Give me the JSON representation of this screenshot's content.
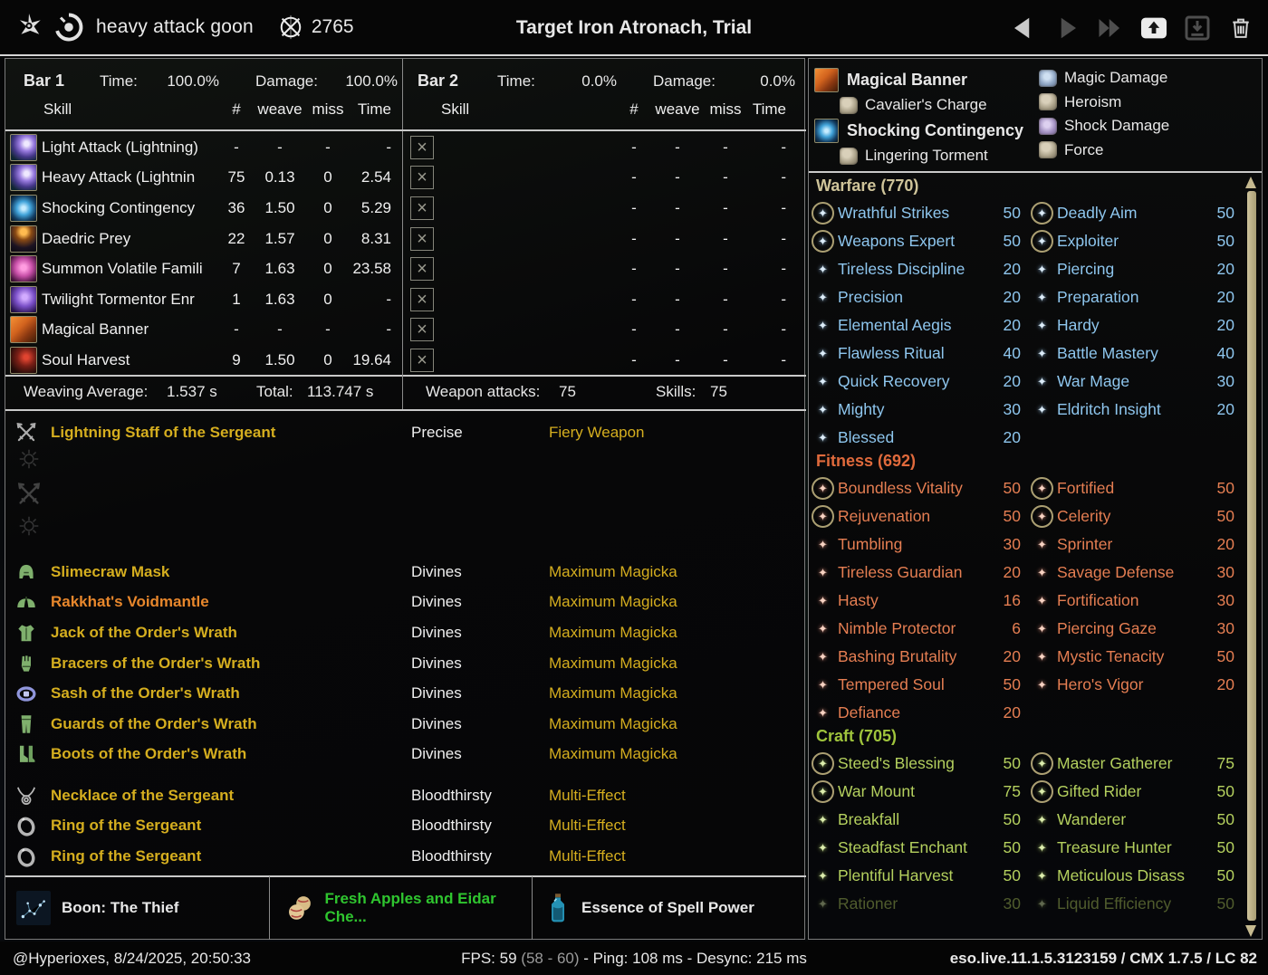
{
  "top_bar": {
    "fight_name": "heavy attack goon",
    "champion_points": "2765",
    "title": "Target Iron Atronach, Trial"
  },
  "bar1": {
    "label": "Bar 1",
    "time_label": "Time:",
    "time_value": "100.0%",
    "damage_label": "Damage:",
    "damage_value": "100.0%",
    "columns": {
      "skill": "Skill",
      "count": "#",
      "weave": "weave",
      "miss": "miss",
      "time": "Time"
    },
    "rows": [
      {
        "skill": "Light Attack (Lightning)",
        "icon": "lightning-attack-icon",
        "art": "ic-light",
        "count": "-",
        "weave": "-",
        "miss": "-",
        "time": "-"
      },
      {
        "skill": "Heavy Attack (Lightnin",
        "icon": "lightning-attack-icon",
        "art": "ic-light",
        "count": "75",
        "weave": "0.13",
        "miss": "0",
        "time": "2.54"
      },
      {
        "skill": "Shocking Contingency",
        "icon": "shocking-contingency-icon",
        "art": "ic-shock",
        "count": "36",
        "weave": "1.50",
        "miss": "0",
        "time": "5.29"
      },
      {
        "skill": "Daedric Prey",
        "icon": "daedric-prey-icon",
        "art": "ic-prey",
        "count": "22",
        "weave": "1.57",
        "miss": "0",
        "time": "8.31"
      },
      {
        "skill": "Summon Volatile Famili",
        "icon": "volatile-familiar-icon",
        "art": "ic-fam",
        "count": "7",
        "weave": "1.63",
        "miss": "0",
        "time": "23.58"
      },
      {
        "skill": "Twilight Tormentor Enr",
        "icon": "twilight-tormentor-icon",
        "art": "ic-twil",
        "count": "1",
        "weave": "1.63",
        "miss": "0",
        "time": "-"
      },
      {
        "skill": "Magical Banner",
        "icon": "magical-banner-icon",
        "art": "ic-banner",
        "count": "-",
        "weave": "-",
        "miss": "-",
        "time": "-"
      },
      {
        "skill": "Soul Harvest",
        "icon": "soul-harvest-icon",
        "art": "ic-soul",
        "count": "9",
        "weave": "1.50",
        "miss": "0",
        "time": "19.64"
      }
    ],
    "summary": {
      "weaving_label": "Weaving Average:",
      "weaving_value": "1.537 s",
      "total_label": "Total:",
      "total_value": "113.747 s"
    }
  },
  "bar2": {
    "label": "Bar 2",
    "time_label": "Time:",
    "time_value": "0.0%",
    "damage_label": "Damage:",
    "damage_value": "0.0%",
    "empty_rows": 8,
    "summary": {
      "attacks_label": "Weapon attacks:",
      "attacks_value": "75",
      "skills_label": "Skills:",
      "skills_value": "75"
    }
  },
  "equipment": {
    "weapon": {
      "name": "Lightning Staff of the Sergeant",
      "trait": "Precise",
      "enchant": "Fiery Weapon",
      "quality": "gold",
      "icon": "crossed-swords-icon"
    },
    "armor": [
      {
        "name": "Slimecraw Mask",
        "trait": "Divines",
        "enchant": "Maximum Magicka",
        "quality": "gold",
        "icon": "helmet-icon"
      },
      {
        "name": "Rakkhat's Voidmantle",
        "trait": "Divines",
        "enchant": "Maximum Magicka",
        "quality": "orange",
        "icon": "shoulders-icon"
      },
      {
        "name": "Jack of the Order's Wrath",
        "trait": "Divines",
        "enchant": "Maximum Magicka",
        "quality": "gold",
        "icon": "chest-icon"
      },
      {
        "name": "Bracers of the Order's Wrath",
        "trait": "Divines",
        "enchant": "Maximum Magicka",
        "quality": "gold",
        "icon": "gloves-icon"
      },
      {
        "name": "Sash of the Order's Wrath",
        "trait": "Divines",
        "enchant": "Maximum Magicka",
        "quality": "gold",
        "icon": "belt-icon"
      },
      {
        "name": "Guards of the Order's Wrath",
        "trait": "Divines",
        "enchant": "Maximum Magicka",
        "quality": "gold",
        "icon": "legs-icon"
      },
      {
        "name": "Boots of the Order's Wrath",
        "trait": "Divines",
        "enchant": "Maximum Magicka",
        "quality": "gold",
        "icon": "boots-icon"
      }
    ],
    "jewelry": [
      {
        "name": "Necklace of the Sergeant",
        "trait": "Bloodthirsty",
        "enchant": "Multi-Effect",
        "quality": "gold",
        "icon": "necklace-icon"
      },
      {
        "name": "Ring of the Sergeant",
        "trait": "Bloodthirsty",
        "enchant": "Multi-Effect",
        "quality": "gold",
        "icon": "ring-icon"
      },
      {
        "name": "Ring of the Sergeant",
        "trait": "Bloodthirsty",
        "enchant": "Multi-Effect",
        "quality": "gold",
        "icon": "ring-icon"
      }
    ]
  },
  "consumables": {
    "boon": {
      "label": "Boon: The Thief",
      "icon": "boon-constellation-icon"
    },
    "food": {
      "label": "Fresh Apples and Eidar Che...",
      "icon": "food-icon",
      "color": "#2fc52f"
    },
    "potion": {
      "label": "Essence of Spell Power",
      "icon": "potion-icon"
    }
  },
  "buffs": {
    "left": [
      {
        "name": "Magical Banner",
        "icon": "magical-banner-buff-icon",
        "art": "ic-banner",
        "sub": {
          "name": "Cavalier's Charge",
          "icon": "rune-stone-icon",
          "stone": ""
        }
      },
      {
        "name": "Shocking Contingency",
        "icon": "shocking-contingency-buff-icon",
        "art": "ic-shock",
        "sub": {
          "name": "Lingering Torment",
          "icon": "rune-stone-icon",
          "stone": ""
        }
      }
    ],
    "right": [
      {
        "name": "Magic Damage",
        "icon": "rune-stone-blue-icon",
        "stone": "blue"
      },
      {
        "name": "Heroism",
        "icon": "rune-stone-icon",
        "stone": ""
      },
      {
        "name": "Shock Damage",
        "icon": "rune-stone-purple-icon",
        "stone": "purple"
      },
      {
        "name": "Force",
        "icon": "rune-stone-icon",
        "stone": ""
      }
    ]
  },
  "champion": {
    "sections": [
      {
        "id": "warfare",
        "title": "Warfare (770)",
        "color": "#8ec6ee",
        "left": [
          {
            "name": "Wrathful Strikes",
            "value": "50",
            "slotted": true
          },
          {
            "name": "Weapons Expert",
            "value": "50",
            "slotted": true
          },
          {
            "name": "Tireless Discipline",
            "value": "20",
            "slotted": false
          },
          {
            "name": "Precision",
            "value": "20",
            "slotted": false
          },
          {
            "name": "Elemental Aegis",
            "value": "20",
            "slotted": false
          },
          {
            "name": "Flawless Ritual",
            "value": "40",
            "slotted": false
          },
          {
            "name": "Quick Recovery",
            "value": "20",
            "slotted": false
          },
          {
            "name": "Mighty",
            "value": "30",
            "slotted": false
          },
          {
            "name": "Blessed",
            "value": "20",
            "slotted": false
          }
        ],
        "right": [
          {
            "name": "Deadly Aim",
            "value": "50",
            "slotted": true
          },
          {
            "name": "Exploiter",
            "value": "50",
            "slotted": true
          },
          {
            "name": "Piercing",
            "value": "20",
            "slotted": false
          },
          {
            "name": "Preparation",
            "value": "20",
            "slotted": false
          },
          {
            "name": "Hardy",
            "value": "20",
            "slotted": false
          },
          {
            "name": "Battle Mastery",
            "value": "40",
            "slotted": false
          },
          {
            "name": "War Mage",
            "value": "30",
            "slotted": false
          },
          {
            "name": "Eldritch Insight",
            "value": "20",
            "slotted": false
          }
        ]
      },
      {
        "id": "fitness",
        "title": "Fitness (692)",
        "color": "#e57e52",
        "left": [
          {
            "name": "Boundless Vitality",
            "value": "50",
            "slotted": true
          },
          {
            "name": "Rejuvenation",
            "value": "50",
            "slotted": true
          },
          {
            "name": "Tumbling",
            "value": "30",
            "slotted": false
          },
          {
            "name": "Tireless Guardian",
            "value": "20",
            "slotted": false
          },
          {
            "name": "Hasty",
            "value": "16",
            "slotted": false
          },
          {
            "name": "Nimble Protector",
            "value": "6",
            "slotted": false
          },
          {
            "name": "Bashing Brutality",
            "value": "20",
            "slotted": false
          },
          {
            "name": "Tempered Soul",
            "value": "50",
            "slotted": false
          },
          {
            "name": "Defiance",
            "value": "20",
            "slotted": false
          }
        ],
        "right": [
          {
            "name": "Fortified",
            "value": "50",
            "slotted": true
          },
          {
            "name": "Celerity",
            "value": "50",
            "slotted": true
          },
          {
            "name": "Sprinter",
            "value": "20",
            "slotted": false
          },
          {
            "name": "Savage Defense",
            "value": "30",
            "slotted": false
          },
          {
            "name": "Fortification",
            "value": "30",
            "slotted": false
          },
          {
            "name": "Piercing Gaze",
            "value": "30",
            "slotted": false
          },
          {
            "name": "Mystic Tenacity",
            "value": "50",
            "slotted": false
          },
          {
            "name": "Hero's Vigor",
            "value": "20",
            "slotted": false
          }
        ]
      },
      {
        "id": "craft",
        "title": "Craft (705)",
        "color": "#b4d05e",
        "left": [
          {
            "name": "Steed's Blessing",
            "value": "50",
            "slotted": true
          },
          {
            "name": "War Mount",
            "value": "75",
            "slotted": true
          },
          {
            "name": "Breakfall",
            "value": "50",
            "slotted": false
          },
          {
            "name": "Steadfast Enchant",
            "value": "50",
            "slotted": false
          },
          {
            "name": "Plentiful Harvest",
            "value": "50",
            "slotted": false
          },
          {
            "name": "Rationer",
            "value": "30",
            "slotted": false,
            "faded": true
          }
        ],
        "right": [
          {
            "name": "Master Gatherer",
            "value": "75",
            "slotted": true
          },
          {
            "name": "Gifted Rider",
            "value": "50",
            "slotted": true
          },
          {
            "name": "Wanderer",
            "value": "50",
            "slotted": false
          },
          {
            "name": "Treasure Hunter",
            "value": "50",
            "slotted": false
          },
          {
            "name": "Meticulous Disass",
            "value": "50",
            "slotted": false
          },
          {
            "name": "Liquid Efficiency",
            "value": "50",
            "slotted": false,
            "faded": true
          }
        ]
      }
    ]
  },
  "status_bar": {
    "account": "@Hyperioxes, 8/24/2025, 20:50:33",
    "fps": "FPS: 59",
    "fps_range": "(58 - 60)",
    "net": "- Ping: 108 ms - Desync: 215 ms",
    "version": "eso.live.11.1.5.3123159 / CMX 1.7.5 / LC 82"
  },
  "colors": {
    "item_gold": "#d5ae1f",
    "item_orange": "#e8872c",
    "food_green": "#2fc52f",
    "warfare_blue": "#8ec6ee",
    "fitness_red": "#e57e52",
    "craft_green": "#b4d05e"
  }
}
